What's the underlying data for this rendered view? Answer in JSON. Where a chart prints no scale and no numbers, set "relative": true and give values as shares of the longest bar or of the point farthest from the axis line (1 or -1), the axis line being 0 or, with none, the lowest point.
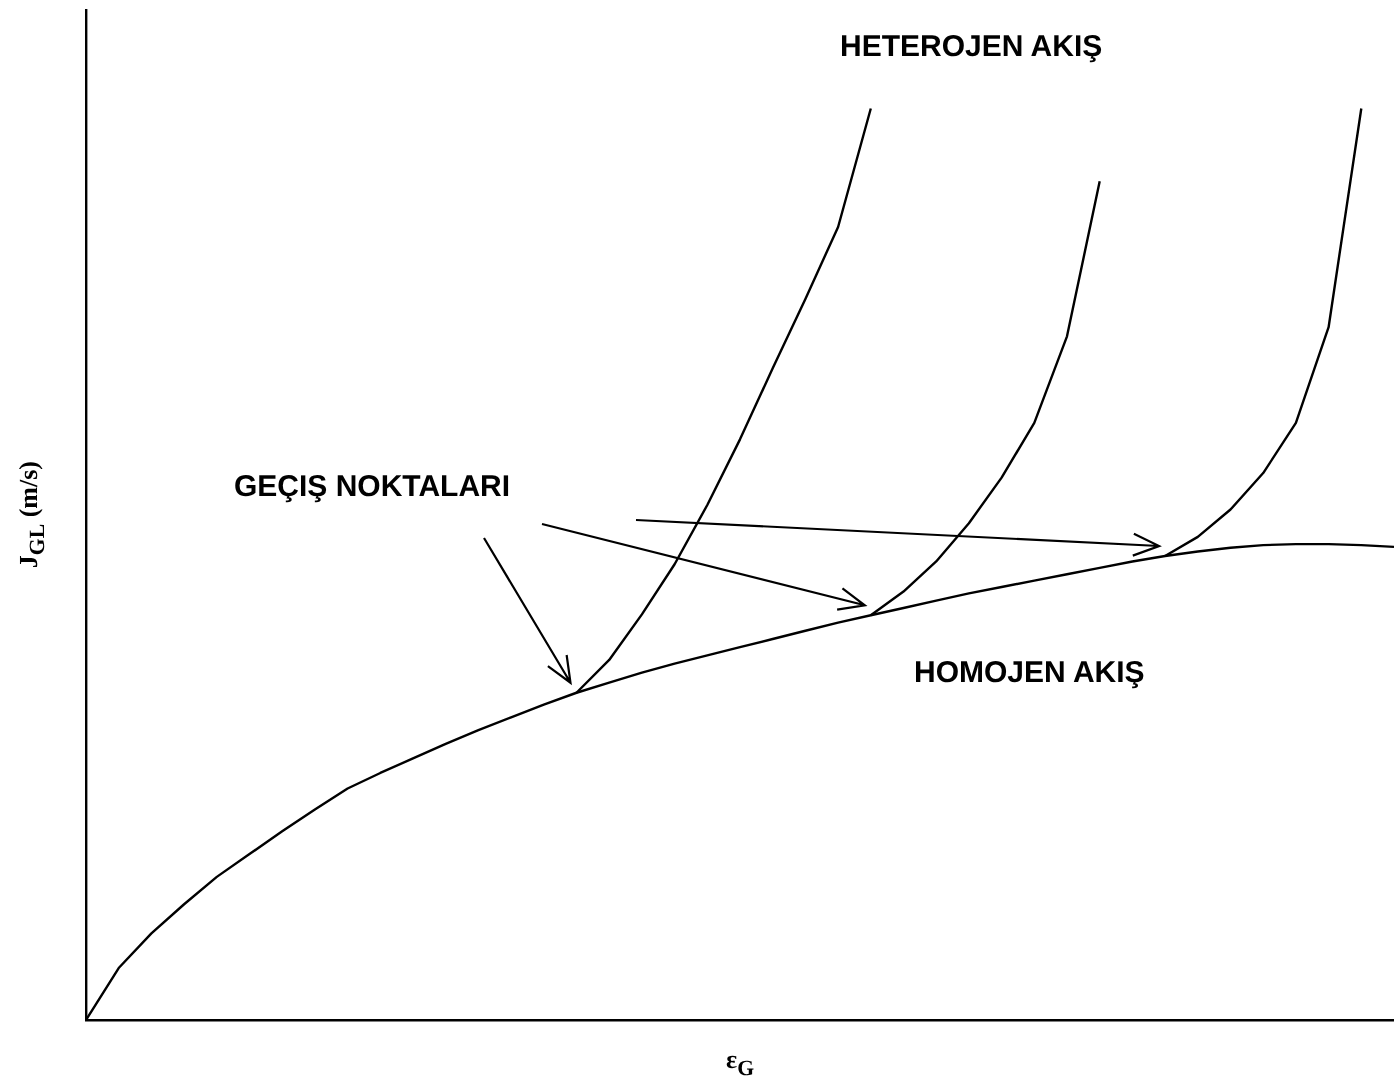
{
  "chart_data": {
    "type": "line",
    "relative": true,
    "xlabel": "ε$_{G}$",
    "ylabel": "J$_{GL}$ (m/s)",
    "legend": false,
    "grid": false,
    "marker": "none",
    "line_style": "solid",
    "categories": [
      null,
      null,
      null,
      null,
      null,
      null,
      null,
      null,
      null,
      null,
      null,
      null,
      null,
      null,
      null,
      null,
      null,
      null,
      null,
      null,
      null,
      null,
      null,
      null,
      null,
      null,
      null,
      null,
      null,
      null,
      null,
      null,
      null,
      null,
      null,
      null,
      null,
      null,
      null,
      null,
      null
    ],
    "series": [
      {
        "color": "#000000",
        "values": [
          0,
          0.057,
          0.095,
          0.127,
          0.157,
          0.182,
          0.207,
          0.231,
          0.254,
          0.271,
          0.287,
          0.303,
          0.318,
          0.332,
          0.346,
          0.359,
          0.37,
          0.381,
          0.391,
          0.4,
          0.409,
          0.418,
          0.427,
          0.436,
          0.444,
          0.452,
          0.46,
          0.468,
          0.475,
          0.482,
          0.489,
          0.496,
          0.503,
          0.509,
          0.514,
          0.518,
          0.521,
          0.522,
          0.522,
          0.521,
          0.519
        ]
      },
      {
        "color": "#000000",
        "values": [
          null,
          null,
          null,
          null,
          null,
          null,
          null,
          null,
          null,
          null,
          null,
          null,
          null,
          null,
          null,
          0.359,
          0.395,
          0.445,
          0.5,
          0.565,
          0.637,
          0.715,
          0.791,
          0.87,
          1.0,
          null,
          null,
          null,
          null,
          null,
          null,
          null,
          null,
          null,
          null,
          null,
          null,
          null,
          null,
          null,
          null
        ]
      },
      {
        "color": "#000000",
        "values": [
          null,
          null,
          null,
          null,
          null,
          null,
          null,
          null,
          null,
          null,
          null,
          null,
          null,
          null,
          null,
          null,
          null,
          null,
          null,
          null,
          null,
          null,
          null,
          null,
          0.444,
          0.47,
          0.503,
          0.545,
          0.595,
          0.655,
          0.75,
          0.92,
          null,
          null,
          null,
          null,
          null,
          null,
          null,
          null,
          null
        ]
      },
      {
        "color": "#000000",
        "values": [
          null,
          null,
          null,
          null,
          null,
          null,
          null,
          null,
          null,
          null,
          null,
          null,
          null,
          null,
          null,
          null,
          null,
          null,
          null,
          null,
          null,
          null,
          null,
          null,
          null,
          null,
          null,
          null,
          null,
          null,
          null,
          null,
          null,
          0.509,
          0.53,
          0.56,
          0.6,
          0.655,
          0.76,
          1.0,
          null
        ]
      }
    ],
    "annotations": [
      "HETEROJEN AKIŞ",
      "GEÇIŞ NOKTALARI",
      "HOMOJEN AKIŞ"
    ]
  }
}
